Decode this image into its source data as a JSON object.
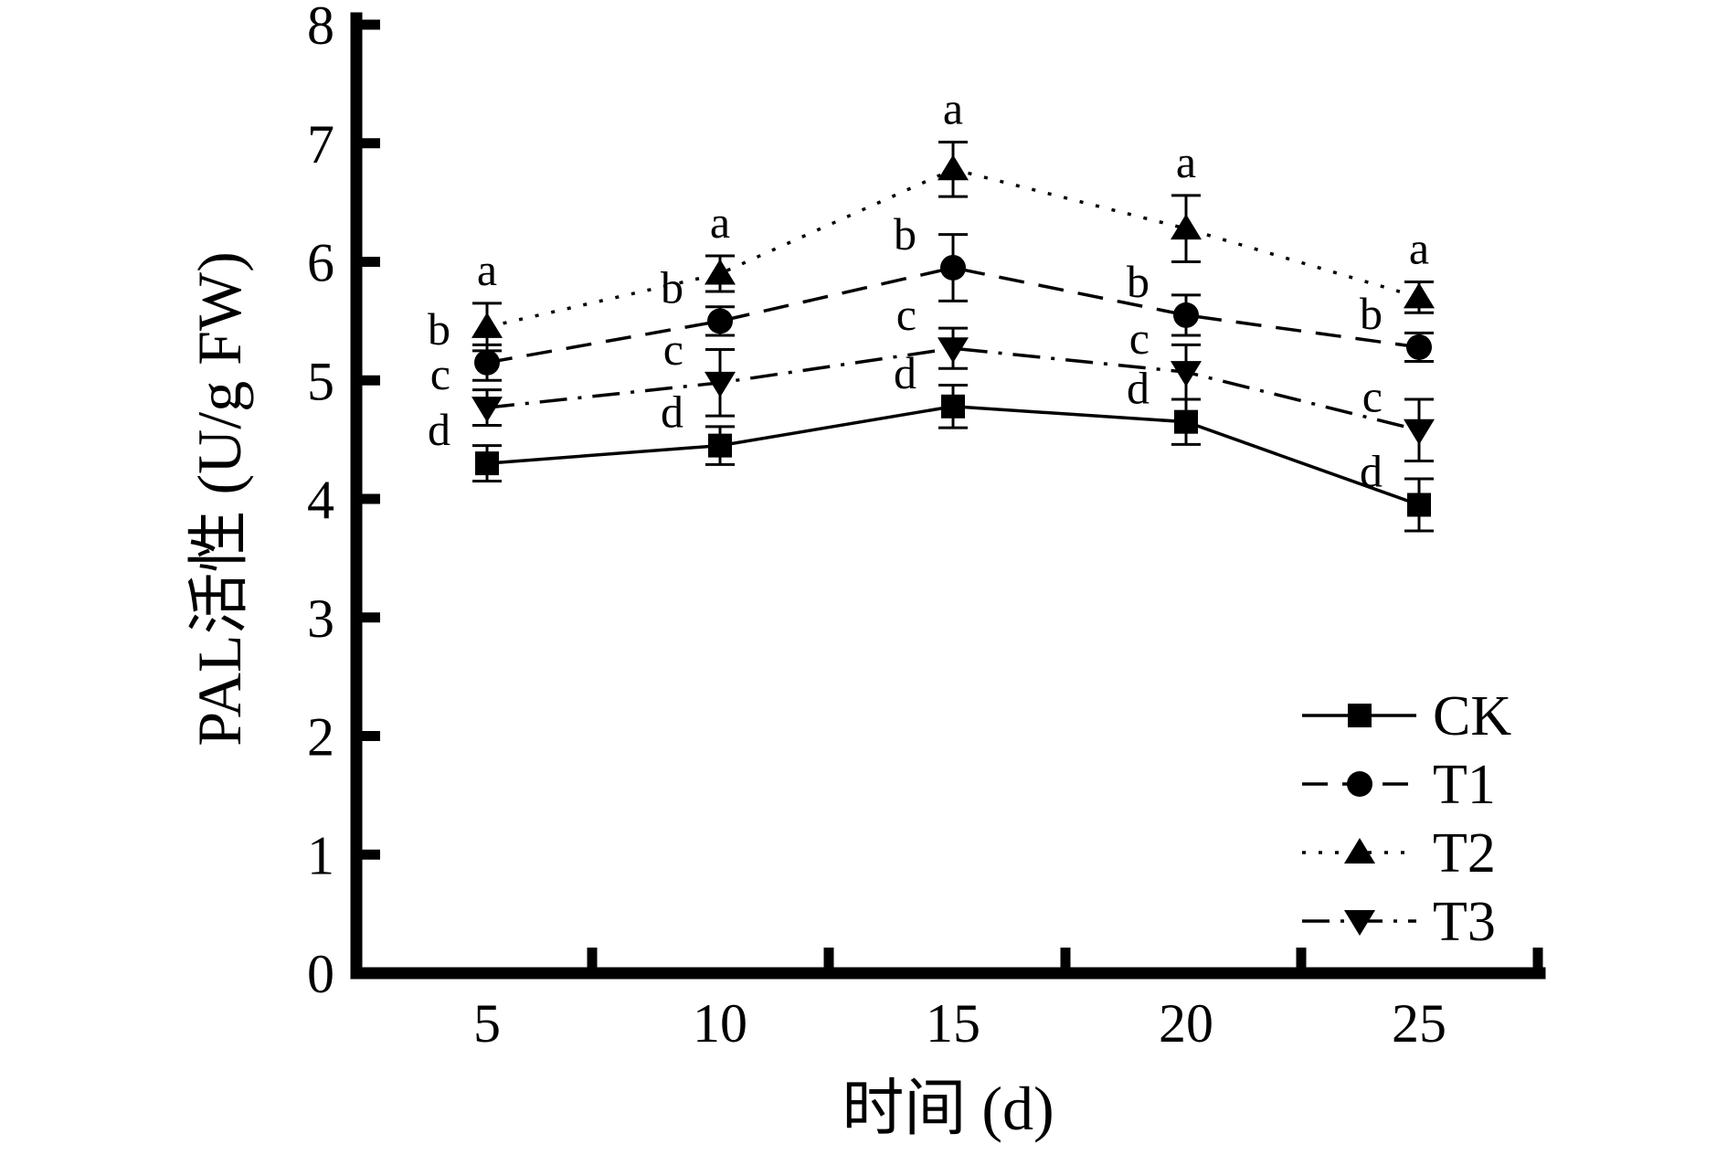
{
  "chart_data": {
    "type": "line",
    "title": "",
    "xlabel": "时间 (d)",
    "ylabel": "PAL活性 (U/g FW)",
    "x": [
      5,
      10,
      15,
      20,
      25
    ],
    "x_tick_labels": [
      "5",
      "10",
      "15",
      "20",
      "25"
    ],
    "ylim": [
      0,
      8
    ],
    "yticks": [
      0,
      1,
      2,
      3,
      4,
      5,
      6,
      7,
      8
    ],
    "grid": false,
    "legend_position": "lower-right",
    "error_bars": true,
    "colors": {
      "foreground": "#000000",
      "background": "#ffffff"
    },
    "series": [
      {
        "name": "CK",
        "marker": "square",
        "linestyle": "solid",
        "values": [
          4.3,
          4.45,
          4.78,
          4.65,
          3.95
        ],
        "errors": [
          0.15,
          0.16,
          0.18,
          0.19,
          0.22
        ],
        "sig_letters": [
          "d",
          "d",
          "d",
          "d",
          "d"
        ]
      },
      {
        "name": "T1",
        "marker": "circle",
        "linestyle": "dashed",
        "values": [
          5.15,
          5.5,
          5.95,
          5.55,
          5.28
        ],
        "errors": [
          0.15,
          0.12,
          0.28,
          0.17,
          0.12
        ],
        "sig_letters": [
          "b",
          "b",
          "b",
          "b",
          "b"
        ]
      },
      {
        "name": "T2",
        "marker": "triangle-up",
        "linestyle": "dotted",
        "values": [
          5.45,
          5.9,
          6.78,
          6.28,
          5.7
        ],
        "errors": [
          0.2,
          0.15,
          0.23,
          0.28,
          0.13
        ],
        "sig_letters": [
          "a",
          "a",
          "a",
          "a",
          "a"
        ]
      },
      {
        "name": "T3",
        "marker": "triangle-down",
        "linestyle": "dashdot",
        "values": [
          4.77,
          4.98,
          5.27,
          5.07,
          4.58
        ],
        "errors": [
          0.15,
          0.28,
          0.17,
          0.23,
          0.26
        ],
        "sig_letters": [
          "c",
          "c",
          "c",
          "c",
          "c"
        ]
      }
    ],
    "legend_order": [
      "CK",
      "T1",
      "T2",
      "T3"
    ]
  }
}
